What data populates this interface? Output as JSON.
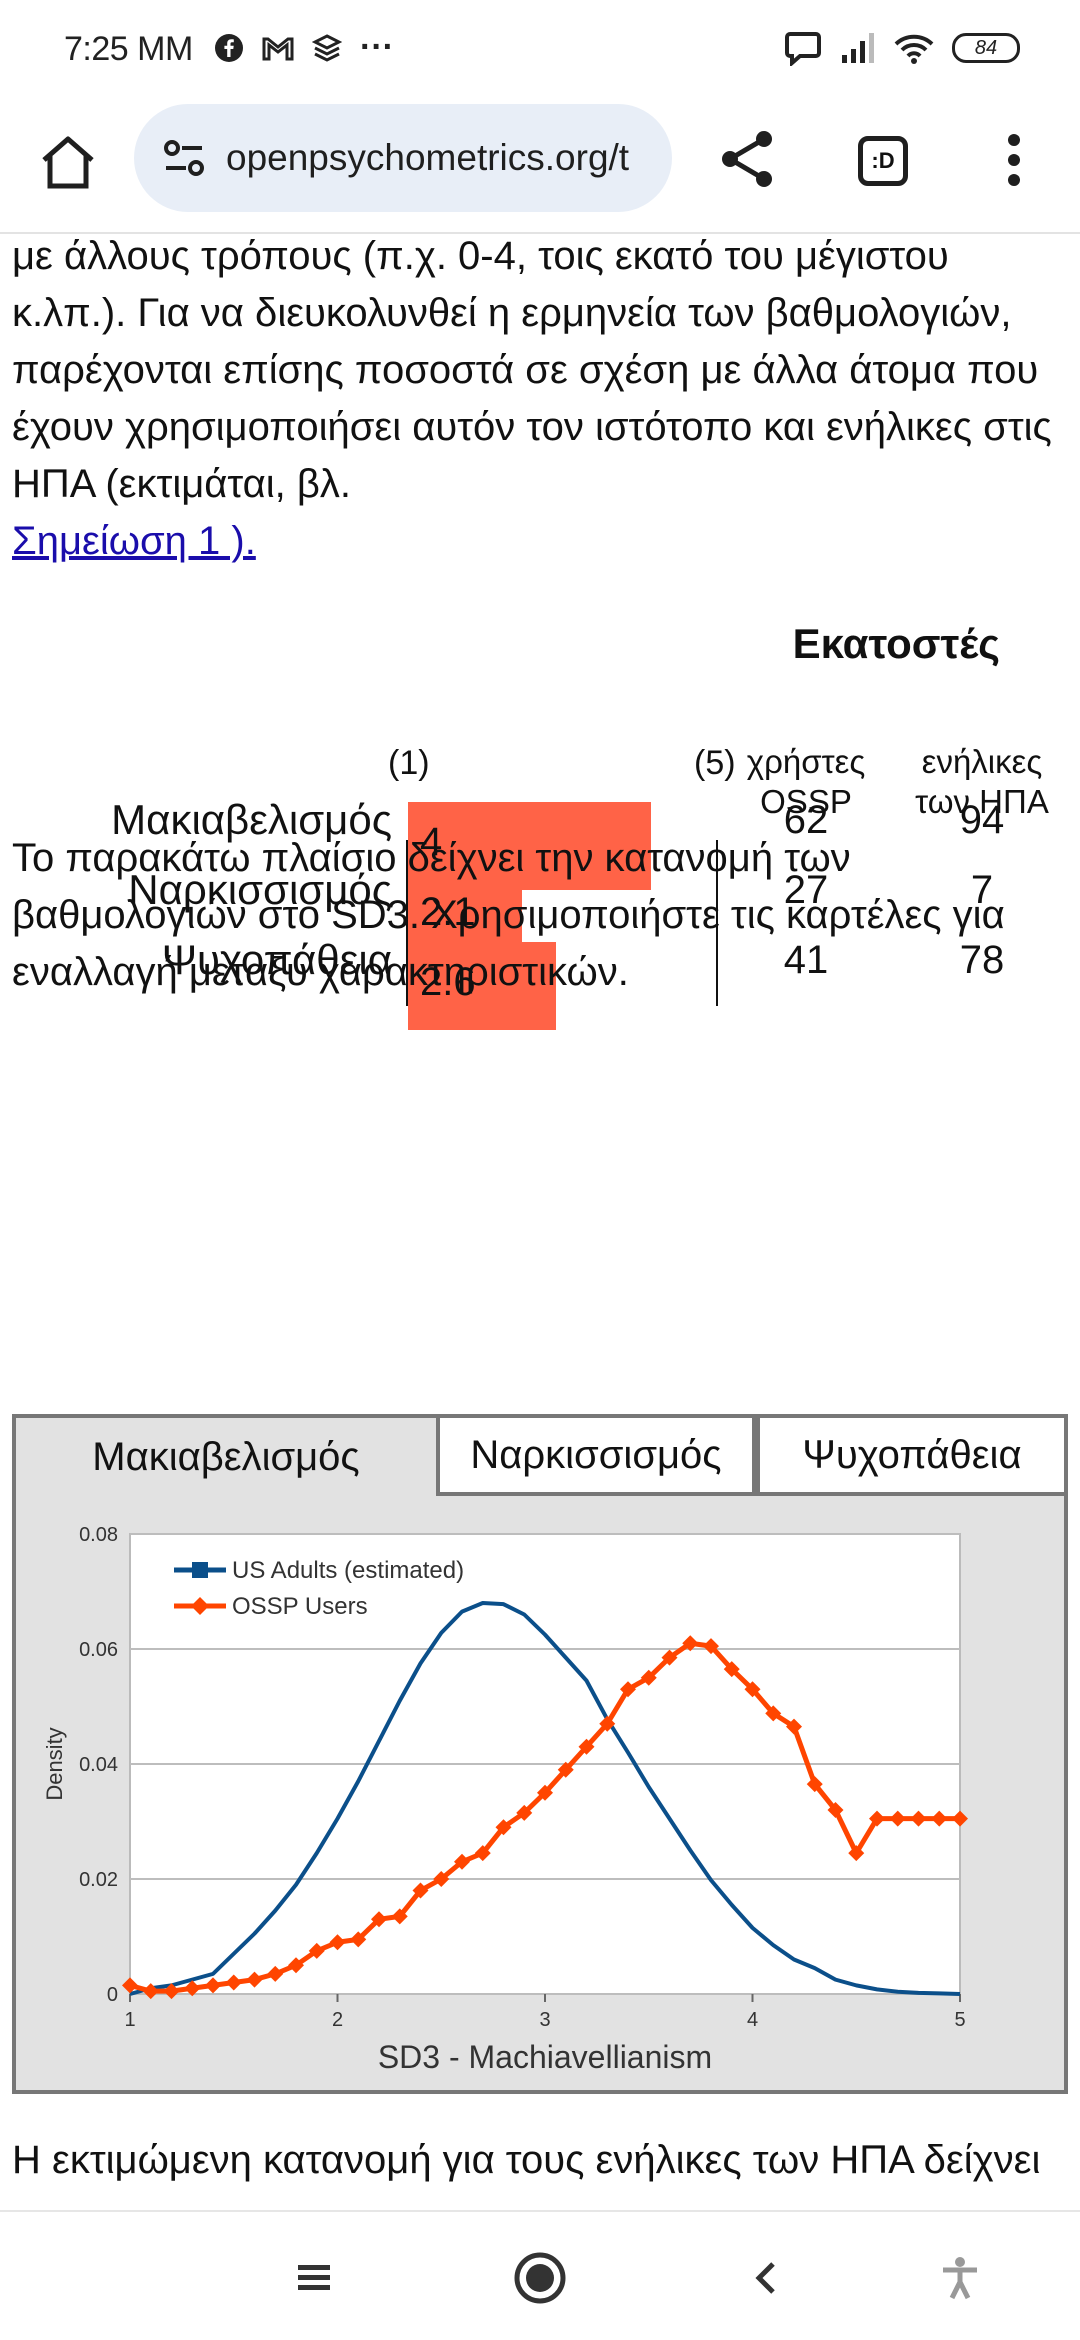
{
  "status_bar": {
    "time": "7:25 MM",
    "more": "···",
    "battery": "84"
  },
  "browser": {
    "url": "openpsychometrics.org/t",
    "tabs_label": ":D"
  },
  "content": {
    "intro_text": "με άλλους τρόπους (π.χ. 0-4, τοις εκατό του μέγιστου κ.λπ.). Για να διευκολυνθεί η ερμηνεία των βαθμολογιών, παρέχονται επίσης ποσοστά σε σχέση με άλλα άτομα που έχουν χρησιμοποιήσει αυτόν τον ιστότοπο και ενήλικες στις ΗΠΑ (εκτιμάται, βλ. ",
    "note_link": "Σημείωση 1 ).",
    "percentiles_title": "Εκατοστές",
    "scale_min": "(1)",
    "scale_max": "(5)",
    "col_ossp": "χρήστες OSSP",
    "col_us": "ενήλικες των ΗΠΑ",
    "rows": [
      {
        "label": "Μακιαβελισμός",
        "score": "4",
        "score_value": 4.0,
        "ossp": "62",
        "us": "94"
      },
      {
        "label": "Ναρκισσισμός",
        "score": "2.1",
        "score_value": 2.1,
        "ossp": "27",
        "us": "7"
      },
      {
        "label": "Ψυχοπάθεια",
        "score": "2.6",
        "score_value": 2.6,
        "ossp": "41",
        "us": "78"
      }
    ],
    "bar_color": "#ff6347",
    "distribution_text": "Το παρακάτω πλαίσιο δείχνει την κατανομή των βαθμολογιών στο SD3. Χρησιμοποιήστε τις καρτέλες για εναλλαγή μεταξύ χαρακτηριστικών.",
    "tabs": [
      "Μακιαβελισμός",
      "Ναρκισσισμός",
      "Ψυχοπάθεια"
    ],
    "bottom_text": "Η εκτιμώμενη κατανομή για τους ενήλικες των ΗΠΑ δείχνει ..."
  },
  "chart_data": {
    "type": "line",
    "xlabel": "SD3 - Machiavellianism",
    "ylabel": "Density",
    "xlim": [
      1,
      5
    ],
    "ylim": [
      0,
      0.08
    ],
    "xticks": [
      "1",
      "2",
      "3",
      "4",
      "5"
    ],
    "yticks": [
      "0",
      "0.02",
      "0.04",
      "0.06",
      "0.08"
    ],
    "grid": true,
    "legend_position": "top-left",
    "series": [
      {
        "name": "US Adults (estimated)",
        "color": "#0b4f8a",
        "marker": "square",
        "x": [
          1.0,
          1.1,
          1.2,
          1.3,
          1.4,
          1.5,
          1.6,
          1.7,
          1.8,
          1.9,
          2.0,
          2.1,
          2.2,
          2.3,
          2.4,
          2.5,
          2.6,
          2.7,
          2.8,
          2.9,
          3.0,
          3.1,
          3.2,
          3.3,
          3.4,
          3.5,
          3.6,
          3.7,
          3.8,
          3.9,
          4.0,
          4.1,
          4.2,
          4.3,
          4.4,
          4.5,
          4.6,
          4.7,
          4.8,
          4.9,
          5.0
        ],
        "y": [
          0.0,
          0.001,
          0.0015,
          0.0025,
          0.0035,
          0.007,
          0.0105,
          0.0145,
          0.019,
          0.0245,
          0.0305,
          0.037,
          0.044,
          0.051,
          0.0575,
          0.0628,
          0.0665,
          0.068,
          0.0678,
          0.066,
          0.0625,
          0.0585,
          0.0545,
          0.0478,
          0.042,
          0.036,
          0.0305,
          0.025,
          0.0198,
          0.0155,
          0.0115,
          0.0085,
          0.006,
          0.0045,
          0.0025,
          0.0015,
          0.0008,
          0.0004,
          0.0002,
          0.0001,
          0.0
        ]
      },
      {
        "name": "OSSP Users",
        "color": "#ff4500",
        "marker": "diamond",
        "x": [
          1.0,
          1.1,
          1.2,
          1.3,
          1.4,
          1.5,
          1.6,
          1.7,
          1.8,
          1.9,
          2.0,
          2.1,
          2.2,
          2.3,
          2.4,
          2.5,
          2.6,
          2.7,
          2.8,
          2.9,
          3.0,
          3.1,
          3.2,
          3.3,
          3.4,
          3.5,
          3.6,
          3.7,
          3.8,
          3.9,
          4.0,
          4.1,
          4.2,
          4.3,
          4.4,
          4.5,
          4.6,
          4.7,
          4.8,
          4.9,
          5.0
        ],
        "y": [
          0.0015,
          0.0005,
          0.0005,
          0.001,
          0.0015,
          0.002,
          0.0025,
          0.0035,
          0.005,
          0.0075,
          0.009,
          0.0095,
          0.013,
          0.0135,
          0.018,
          0.02,
          0.023,
          0.0245,
          0.029,
          0.0315,
          0.035,
          0.039,
          0.043,
          0.047,
          0.053,
          0.055,
          0.0585,
          0.061,
          0.0605,
          0.0565,
          0.053,
          0.0488,
          0.0465,
          0.0365,
          0.032,
          0.0245,
          0.0305,
          0.0305,
          0.0305,
          0.0305,
          0.0305
        ]
      }
    ]
  }
}
